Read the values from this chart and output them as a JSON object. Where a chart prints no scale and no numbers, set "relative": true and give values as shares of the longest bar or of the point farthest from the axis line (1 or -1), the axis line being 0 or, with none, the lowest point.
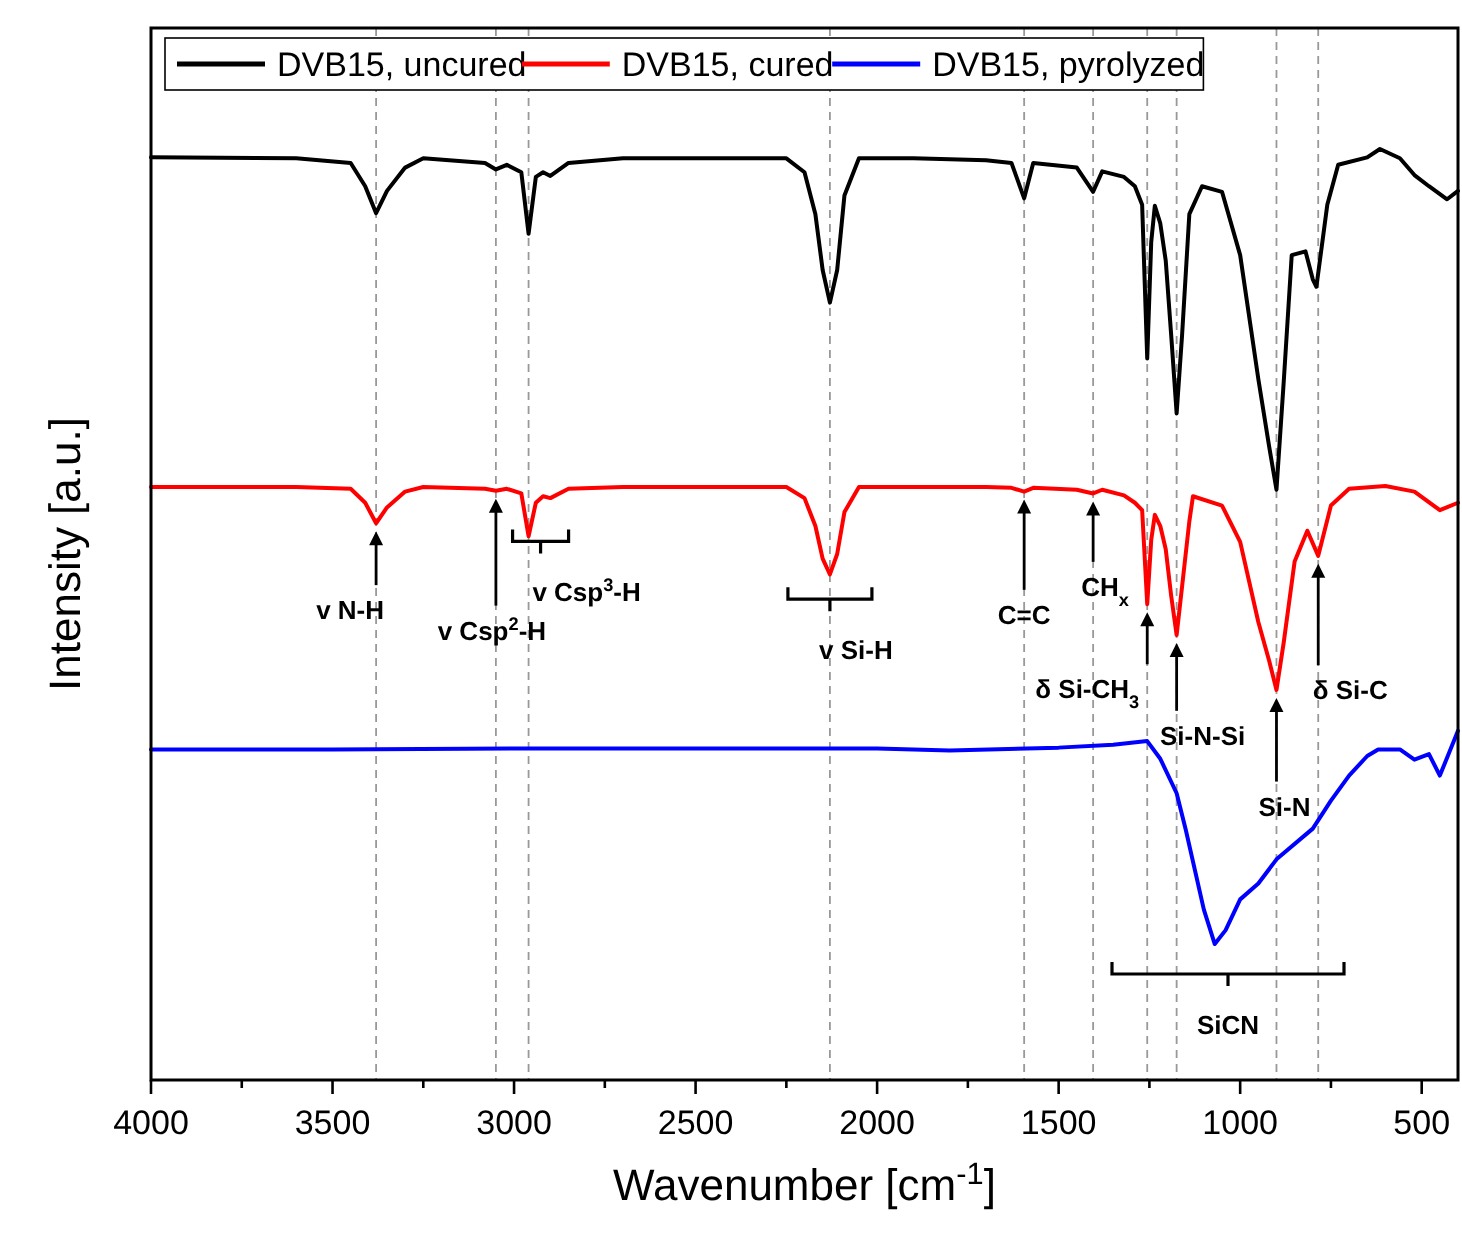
{
  "chart_data": {
    "type": "line",
    "relative": true,
    "xlabel": "Wavenumber [cm$^{-1}$]",
    "ylabel": "Intensity [a.u.]",
    "xlim": [
      4000,
      400
    ],
    "xticks": [
      4000,
      {
        "value": 3750,
        "label": null
      },
      3500,
      {
        "value": 3250,
        "label": null
      },
      3000,
      {
        "value": 2750,
        "label": null
      },
      2500,
      {
        "value": 2250,
        "label": null
      },
      2000,
      {
        "value": 1750,
        "label": null
      },
      1500,
      {
        "value": 1250,
        "label": null
      },
      1000,
      {
        "value": 750,
        "label": null
      },
      500
    ],
    "legend": "top left",
    "grid": false,
    "line_style": "solid",
    "tick_labels": "x",
    "series": [
      {
        "name": "DVB15, uncured",
        "color": "#000000",
        "x": [
          4000,
          3600,
          3450,
          3410,
          3380,
          3350,
          3300,
          3250,
          3080,
          3050,
          3020,
          2980,
          2960,
          2940,
          2920,
          2900,
          2850,
          2700,
          2250,
          2200,
          2170,
          2150,
          2130,
          2110,
          2090,
          2050,
          1900,
          1700,
          1630,
          1595,
          1570,
          1450,
          1405,
          1380,
          1320,
          1290,
          1270,
          1256,
          1245,
          1235,
          1220,
          1205,
          1190,
          1175,
          1160,
          1140,
          1105,
          1050,
          1000,
          950,
          920,
          900,
          880,
          858,
          820,
          800,
          790,
          760,
          730,
          650,
          615,
          560,
          520,
          480,
          430,
          400
        ],
        "values": [
          0.991,
          0.99,
          0.985,
          0.96,
          0.931,
          0.955,
          0.98,
          0.99,
          0.985,
          0.978,
          0.983,
          0.975,
          0.909,
          0.97,
          0.975,
          0.971,
          0.985,
          0.99,
          0.99,
          0.975,
          0.93,
          0.87,
          0.835,
          0.87,
          0.95,
          0.99,
          0.99,
          0.988,
          0.985,
          0.947,
          0.985,
          0.98,
          0.954,
          0.976,
          0.97,
          0.96,
          0.94,
          0.775,
          0.9,
          0.939,
          0.92,
          0.88,
          0.8,
          0.716,
          0.8,
          0.93,
          0.96,
          0.954,
          0.886,
          0.753,
          0.68,
          0.634,
          0.75,
          0.886,
          0.89,
          0.86,
          0.852,
          0.94,
          0.983,
          0.991,
          1.0,
          0.99,
          0.972,
          0.96,
          0.946,
          0.955
        ]
      },
      {
        "name": "DVB15, cured",
        "color": "#ff0000",
        "x": [
          4000,
          3600,
          3450,
          3410,
          3380,
          3350,
          3300,
          3250,
          3080,
          3050,
          3020,
          2980,
          2960,
          2940,
          2920,
          2900,
          2850,
          2700,
          2250,
          2200,
          2170,
          2150,
          2130,
          2110,
          2090,
          2050,
          1900,
          1700,
          1630,
          1595,
          1570,
          1450,
          1405,
          1380,
          1320,
          1290,
          1270,
          1256,
          1245,
          1235,
          1220,
          1205,
          1190,
          1175,
          1160,
          1140,
          1130,
          1050,
          1000,
          950,
          920,
          900,
          880,
          850,
          815,
          785,
          750,
          700,
          600,
          520,
          450,
          400
        ],
        "values": [
          0.637,
          0.637,
          0.635,
          0.62,
          0.598,
          0.615,
          0.632,
          0.637,
          0.635,
          0.633,
          0.635,
          0.63,
          0.584,
          0.62,
          0.627,
          0.625,
          0.635,
          0.637,
          0.637,
          0.625,
          0.595,
          0.56,
          0.543,
          0.565,
          0.61,
          0.637,
          0.637,
          0.637,
          0.636,
          0.632,
          0.636,
          0.634,
          0.63,
          0.634,
          0.628,
          0.62,
          0.612,
          0.511,
          0.58,
          0.607,
          0.595,
          0.57,
          0.52,
          0.478,
          0.53,
          0.6,
          0.627,
          0.617,
          0.578,
          0.492,
          0.45,
          0.419,
          0.47,
          0.557,
          0.59,
          0.563,
          0.617,
          0.635,
          0.638,
          0.632,
          0.612,
          0.62
        ]
      },
      {
        "name": "DVB15, pyrolyzed",
        "color": "#0000ff",
        "x": [
          4000,
          3500,
          3000,
          2500,
          2000,
          1800,
          1500,
          1350,
          1256,
          1220,
          1175,
          1150,
          1100,
          1070,
          1040,
          1000,
          950,
          900,
          800,
          750,
          700,
          650,
          620,
          560,
          520,
          480,
          450,
          400
        ],
        "values": [
          0.355,
          0.355,
          0.356,
          0.356,
          0.356,
          0.354,
          0.357,
          0.36,
          0.364,
          0.345,
          0.308,
          0.269,
          0.183,
          0.146,
          0.161,
          0.194,
          0.211,
          0.237,
          0.27,
          0.3,
          0.327,
          0.348,
          0.355,
          0.355,
          0.344,
          0.35,
          0.327,
          0.375
        ]
      }
    ],
    "ref_lines": [
      {
        "axis": "x",
        "value": 3380,
        "label": null,
        "color": "#999999",
        "line_style": "dashed"
      },
      {
        "axis": "x",
        "value": 3050,
        "label": null,
        "color": "#999999",
        "line_style": "dashed"
      },
      {
        "axis": "x",
        "value": 2960,
        "label": null,
        "color": "#999999",
        "line_style": "dashed"
      },
      {
        "axis": "x",
        "value": 2130,
        "label": null,
        "color": "#999999",
        "line_style": "dashed"
      },
      {
        "axis": "x",
        "value": 1595,
        "label": null,
        "color": "#999999",
        "line_style": "dashed"
      },
      {
        "axis": "x",
        "value": 1405,
        "label": null,
        "color": "#999999",
        "line_style": "dashed"
      },
      {
        "axis": "x",
        "value": 1256,
        "label": null,
        "color": "#999999",
        "line_style": "dashed"
      },
      {
        "axis": "x",
        "value": 1175,
        "label": null,
        "color": "#999999",
        "line_style": "dashed"
      },
      {
        "axis": "x",
        "value": 900,
        "label": null,
        "color": "#999999",
        "line_style": "dashed"
      },
      {
        "axis": "x",
        "value": 785,
        "label": null,
        "color": "#999999",
        "line_style": "dashed"
      }
    ],
    "annotations": [
      {
        "text": "v N-H",
        "x": 3380,
        "y": 0.495
      },
      {
        "text": "v Csp$^{2}$-H",
        "x": 3050,
        "y": 0.473
      },
      {
        "text": "v Csp$^{3}$-H",
        "x": 2960,
        "y": 0.514
      },
      {
        "text": "v Si-H",
        "x": 2130,
        "y": 0.452
      },
      {
        "text": "C=C",
        "x": 1595,
        "y": 0.49
      },
      {
        "text": "CH$_{x}$",
        "x": 1405,
        "y": 0.52
      },
      {
        "text": "δ Si-CH$_{3}$",
        "x": 1256,
        "y": 0.41
      },
      {
        "text": "Si-N-Si",
        "x": 1175,
        "y": 0.36
      },
      {
        "text": "Si-N",
        "x": 900,
        "y": 0.284
      },
      {
        "text": "δ Si-C",
        "x": 785,
        "y": 0.409
      },
      "SiCN"
    ]
  }
}
